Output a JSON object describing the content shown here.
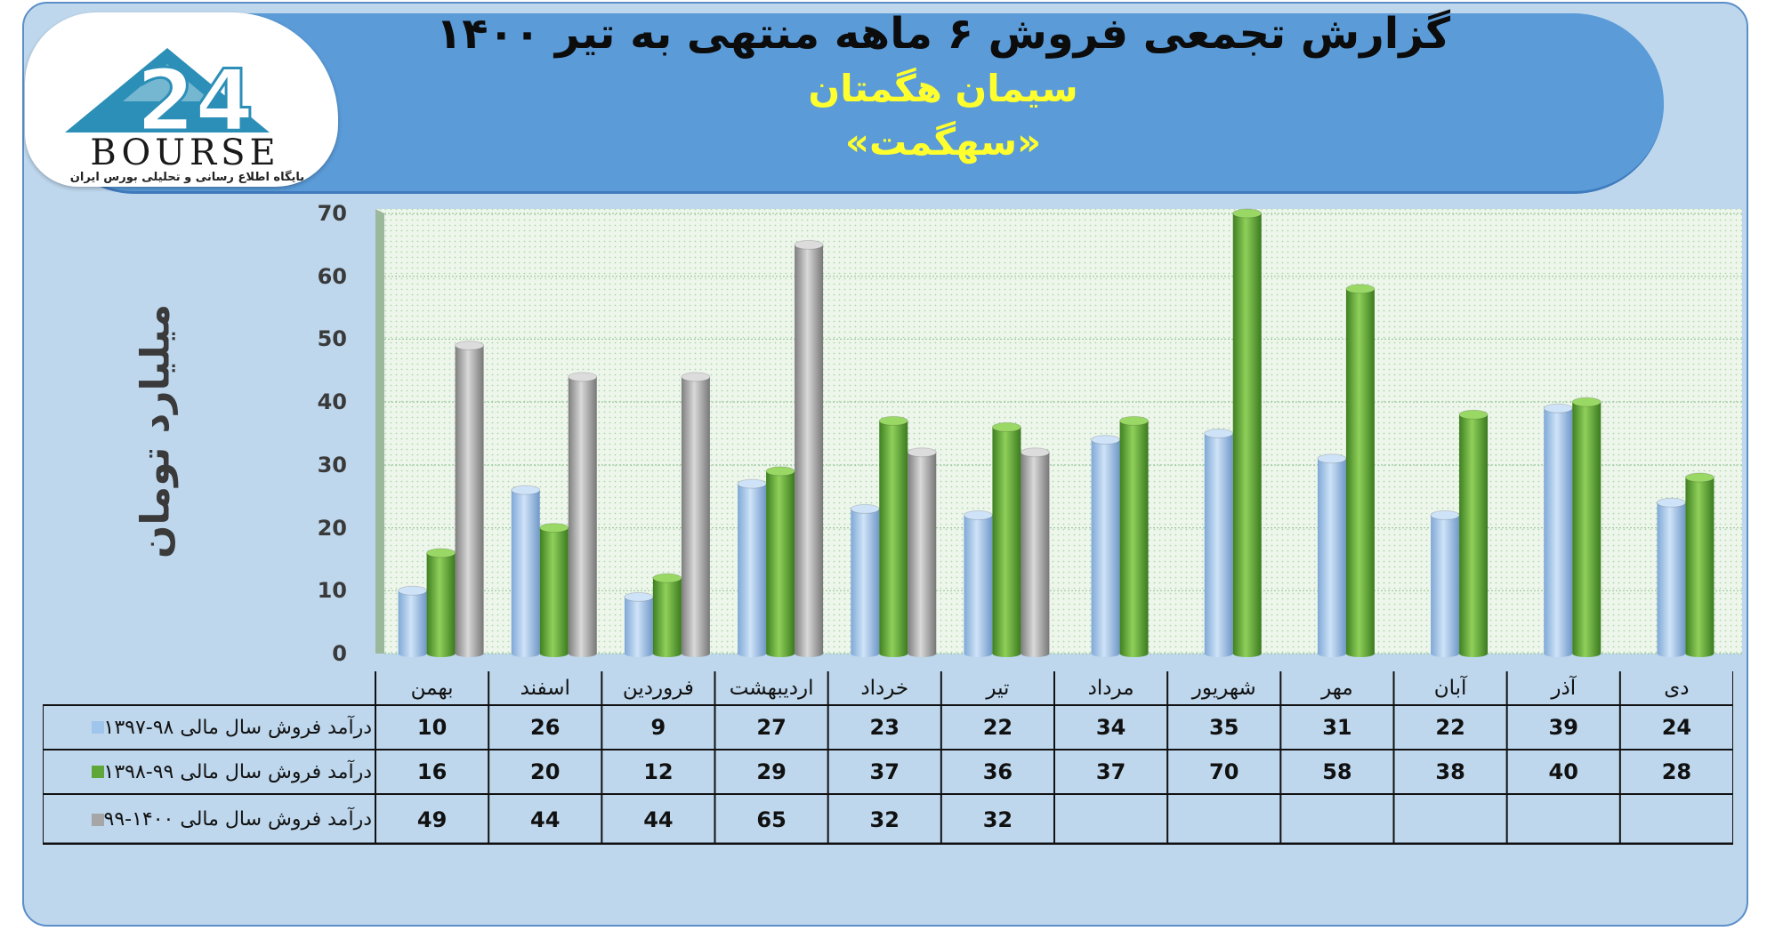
{
  "header": {
    "title": "گزارش تجمعی فروش ۶ ماهه منتهی به تیر ۱۴۰۰",
    "company": "سیمان هگمتان",
    "ticker": "«سهگمت»"
  },
  "logo": {
    "word": "BOURSE",
    "digits": "24",
    "subtitle": "پایگاه اطلاع رسانی و تحلیلی بورس ایران"
  },
  "colors": {
    "series1": "#9fc5ec",
    "series2": "#5fa738",
    "series3": "#a6a6a6",
    "panel": "#bed7ed",
    "header": "#5a9bd8",
    "accent_text": "#ffff2e"
  },
  "chart_data": {
    "type": "bar",
    "title": "گزارش تجمعی فروش ۶ ماهه منتهی به تیر ۱۴۰۰",
    "ylabel": "میلیارد تومان",
    "xlabel": "",
    "ylim": [
      0,
      70
    ],
    "yticks": [
      0,
      10,
      20,
      30,
      40,
      50,
      60,
      70
    ],
    "grid": true,
    "categories": [
      "بهمن",
      "اسفند",
      "فروردین",
      "اردیبهشت",
      "خرداد",
      "تیر",
      "مرداد",
      "شهریور",
      "مهر",
      "آبان",
      "آذر",
      "دی"
    ],
    "series": [
      {
        "name": "درآمد فروش سال مالی ۹۸-۱۳۹۷",
        "values": [
          10,
          26,
          9,
          27,
          23,
          22,
          34,
          35,
          31,
          22,
          39,
          24
        ]
      },
      {
        "name": "درآمد فروش سال مالی ۹۹-۱۳۹۸",
        "values": [
          16,
          20,
          12,
          29,
          37,
          36,
          37,
          70,
          58,
          38,
          40,
          28
        ]
      },
      {
        "name": "درآمد فروش سال مالی ۱۴۰۰-۹۹",
        "values": [
          49,
          44,
          44,
          65,
          32,
          32,
          null,
          null,
          null,
          null,
          null,
          null
        ]
      }
    ]
  }
}
